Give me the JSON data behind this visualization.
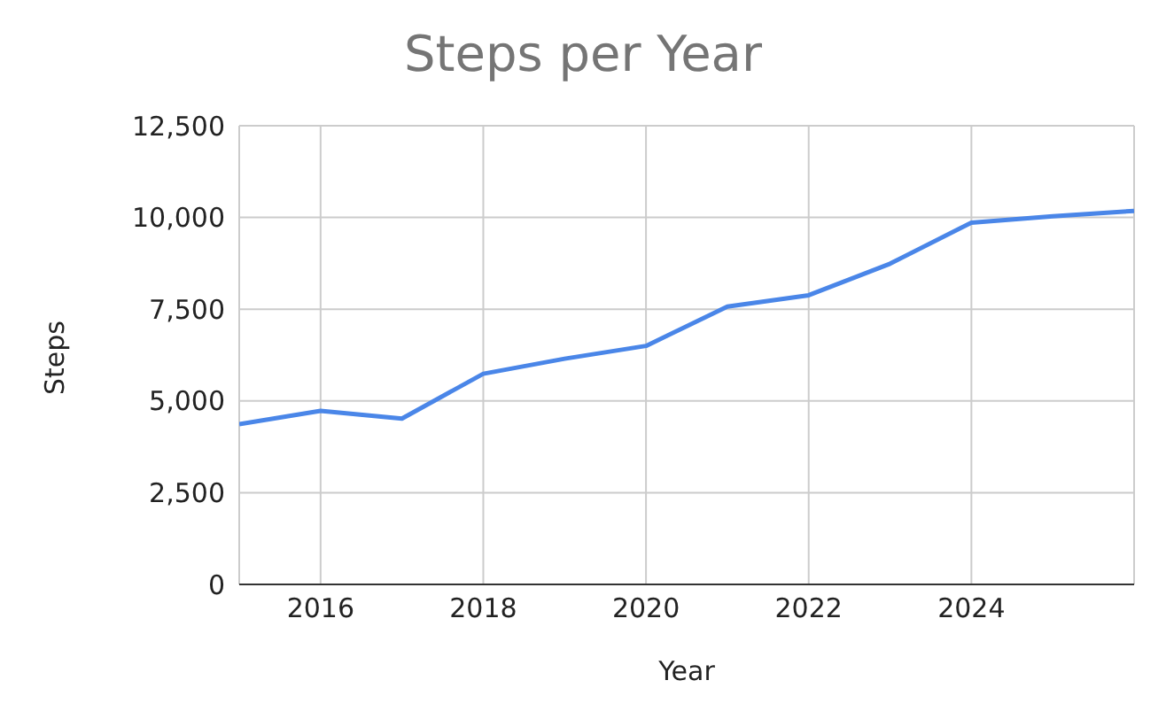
{
  "chart_data": {
    "type": "line",
    "title": "Steps per Year",
    "xlabel": "Year",
    "ylabel": "Steps",
    "x": [
      2015,
      2016,
      2017,
      2018,
      2019,
      2020,
      2021,
      2022,
      2023,
      2024,
      2025,
      2026
    ],
    "series": [
      {
        "color": "#4a86e8",
        "values": [
          4370,
          4730,
          4520,
          5740,
          6150,
          6500,
          7570,
          7880,
          8740,
          9860,
          10030,
          10180
        ]
      }
    ],
    "xlim": [
      2015,
      2026
    ],
    "xticks": [
      2016,
      2018,
      2020,
      2022,
      2024
    ],
    "ylim": [
      0,
      12500
    ],
    "yticks": [
      {
        "value": 0,
        "label": "0"
      },
      {
        "value": 2500,
        "label": "2,500"
      },
      {
        "value": 5000,
        "label": "5,000"
      },
      {
        "value": 7500,
        "label": "7,500"
      },
      {
        "value": 10000,
        "label": "10,000"
      },
      {
        "value": 12500,
        "label": "12,500"
      }
    ],
    "grid": true,
    "marker": "none",
    "line_style": "solid"
  }
}
